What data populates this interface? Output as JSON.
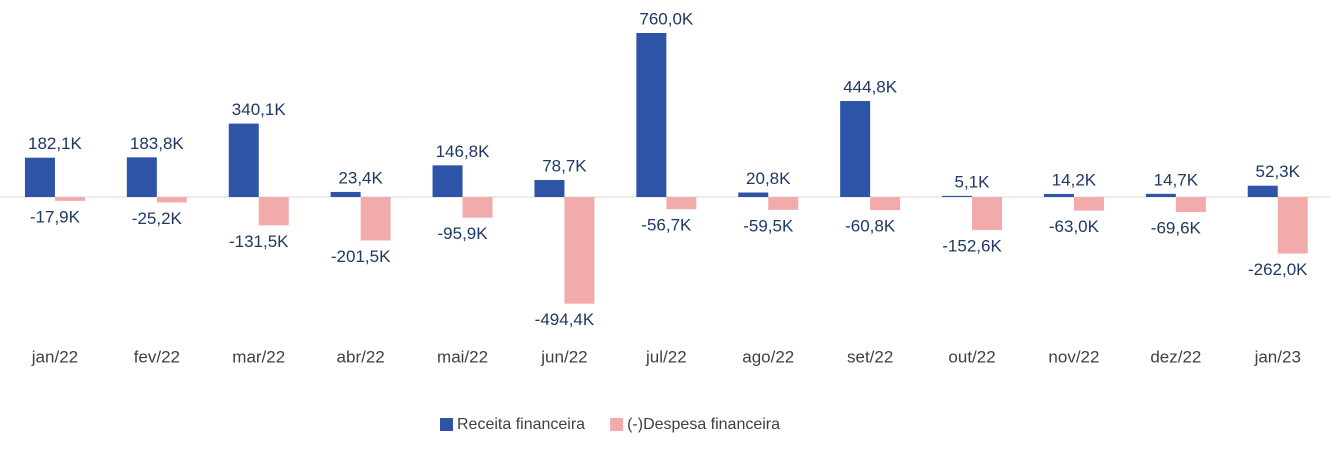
{
  "chart_data": {
    "type": "bar",
    "categories": [
      "jan/22",
      "fev/22",
      "mar/22",
      "abr/22",
      "mai/22",
      "jun/22",
      "jul/22",
      "ago/22",
      "set/22",
      "out/22",
      "nov/22",
      "dez/22",
      "jan/23"
    ],
    "series": [
      {
        "name": "Receita financeira",
        "color": "#2e54a8",
        "values": [
          182.1,
          183.8,
          340.1,
          23.4,
          146.8,
          78.7,
          760.0,
          20.8,
          444.8,
          5.1,
          14.2,
          14.7,
          52.3
        ],
        "value_labels": [
          "182,1K",
          "183,8K",
          "340,1K",
          "23,4K",
          "146,8K",
          "78,7K",
          "760,0K",
          "20,8K",
          "444,8K",
          "5,1K",
          "14,2K",
          "14,7K",
          "52,3K"
        ]
      },
      {
        "name": "(-)Despesa financeira",
        "color": "#f2aaaa",
        "values": [
          -17.9,
          -25.2,
          -131.5,
          -201.5,
          -95.9,
          -494.4,
          -56.7,
          -59.5,
          -60.8,
          -152.6,
          -63.0,
          -69.6,
          -262.0
        ],
        "value_labels": [
          "-17,9K",
          "-25,2K",
          "-131,5K",
          "-201,5K",
          "-95,9K",
          "-494,4K",
          "-56,7K",
          "-59,5K",
          "-60,8K",
          "-152,6K",
          "-63,0K",
          "-69,6K",
          "-262,0K"
        ]
      }
    ]
  }
}
